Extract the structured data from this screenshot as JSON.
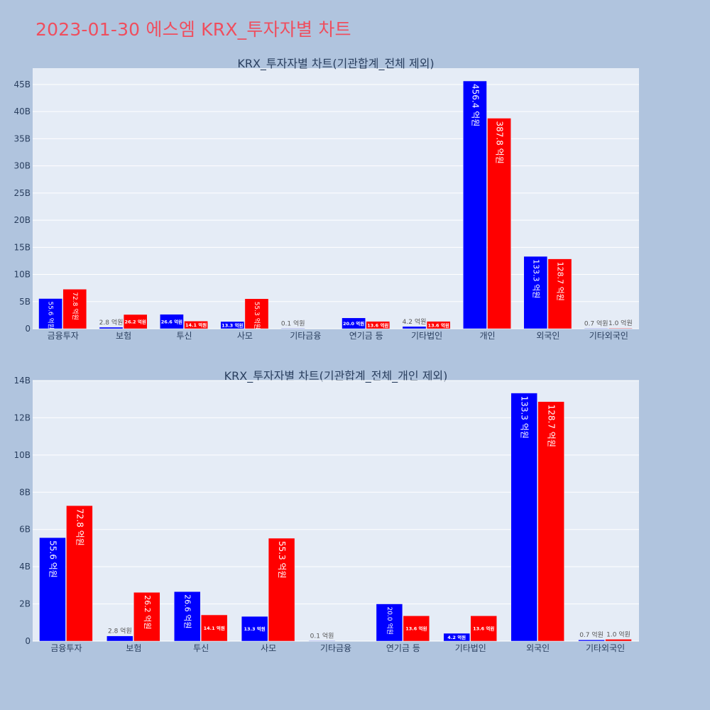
{
  "page": {
    "title": "2023-01-30 에스엠 KRX_투자자별 차트"
  },
  "colors": {
    "buy": "#0000ff",
    "sell": "#ff0000",
    "plot_bg": "#e5ecf6",
    "paper_bg": "#b0c4de",
    "title": "#ef4e5e"
  },
  "chart_data": [
    {
      "type": "bar",
      "title": "KRX_투자자별 차트(기관합계_전체 제외)",
      "categories": [
        "금융투자",
        "보험",
        "투신",
        "사모",
        "기타금융",
        "연기금 등",
        "기타법인",
        "개인",
        "외국인",
        "기타외국인"
      ],
      "series": [
        {
          "color": "#0000ff",
          "values": [
            5.56,
            0.28,
            2.66,
            1.33,
            0.01,
            2.0,
            0.42,
            45.64,
            13.33,
            0.07
          ],
          "labels": [
            "55.6 억원",
            "2.8 억원",
            "26.6 억원",
            "13.3 억원",
            "0.1 억원",
            "20.0 억원",
            "4.2 억원",
            "456.4 억원",
            "133.3 억원",
            "0.7 억원"
          ]
        },
        {
          "color": "#ff0000",
          "values": [
            7.28,
            2.62,
            1.41,
            5.53,
            0.0,
            1.36,
            1.36,
            38.78,
            12.87,
            0.1
          ],
          "labels": [
            "72.8 억원",
            "26.2 억원",
            "14.1 억원",
            "55.3 억원",
            "",
            "13.6 억원",
            "13.6 억원",
            "387.8 억원",
            "128.7 억원",
            "1.0 억원"
          ]
        }
      ],
      "ylim": [
        0,
        48
      ],
      "yticks": [
        0,
        5,
        10,
        15,
        20,
        25,
        30,
        35,
        40,
        45
      ],
      "ytick_labels": [
        "0",
        "5B",
        "10B",
        "15B",
        "20B",
        "25B",
        "30B",
        "35B",
        "40B",
        "45B"
      ],
      "grid": true,
      "legend": "none"
    },
    {
      "type": "bar",
      "title": "KRX_투자자별 차트(기관합계_전체_개인 제외)",
      "categories": [
        "금융투자",
        "보험",
        "투신",
        "사모",
        "기타금융",
        "연기금 등",
        "기타법인",
        "외국인",
        "기타외국인"
      ],
      "series": [
        {
          "color": "#0000ff",
          "values": [
            5.56,
            0.28,
            2.66,
            1.33,
            0.01,
            2.0,
            0.42,
            13.33,
            0.07
          ],
          "labels": [
            "55.6 억원",
            "2.8 억원",
            "26.6 억원",
            "13.3 억원",
            "0.1 억원",
            "20.0 억원",
            "4.2 억원",
            "133.3 억원",
            "0.7 억원"
          ]
        },
        {
          "color": "#ff0000",
          "values": [
            7.28,
            2.62,
            1.41,
            5.53,
            0.0,
            1.36,
            1.36,
            12.87,
            0.1
          ],
          "labels": [
            "72.8 억원",
            "26.2 억원",
            "14.1 억원",
            "55.3 억원",
            "",
            "13.6 억원",
            "13.6 억원",
            "128.7 억원",
            "1.0 억원"
          ]
        }
      ],
      "ylim": [
        0,
        14
      ],
      "yticks": [
        0,
        2,
        4,
        6,
        8,
        10,
        12,
        14
      ],
      "ytick_labels": [
        "0",
        "2B",
        "4B",
        "6B",
        "8B",
        "10B",
        "12B",
        "14B"
      ],
      "grid": true,
      "legend": "none"
    }
  ]
}
